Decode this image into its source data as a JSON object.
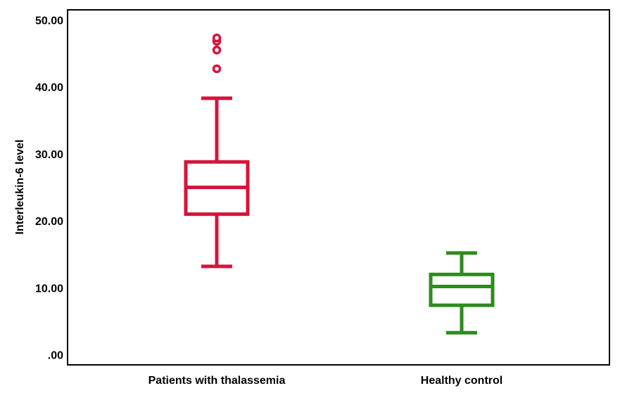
{
  "chart_data": {
    "type": "boxplot",
    "title": "",
    "xlabel": "",
    "ylabel": "Interleukin-6 level",
    "ylim": [
      -1.5,
      51.5
    ],
    "yticks": [
      ".00",
      "10.00",
      "20.00",
      "30.00",
      "40.00",
      "50.00"
    ],
    "ytick_values": [
      0,
      10,
      20,
      30,
      40,
      50
    ],
    "grid": false,
    "categories": [
      "Patients with thalassemia",
      "Healthy control"
    ],
    "boxes": [
      {
        "category": "Patients with thalassemia",
        "whisker_low": 13.2,
        "q1": 21.0,
        "median": 25.0,
        "q3": 28.8,
        "whisker_high": 38.3,
        "outliers": [
          42.7,
          45.5,
          46.8,
          47.3
        ],
        "color": "#d6143c"
      },
      {
        "category": "Healthy control",
        "whisker_low": 3.3,
        "q1": 7.4,
        "median": 10.2,
        "q3": 12.0,
        "whisker_high": 15.2,
        "outliers": [],
        "color": "#2e8b1e"
      }
    ]
  }
}
